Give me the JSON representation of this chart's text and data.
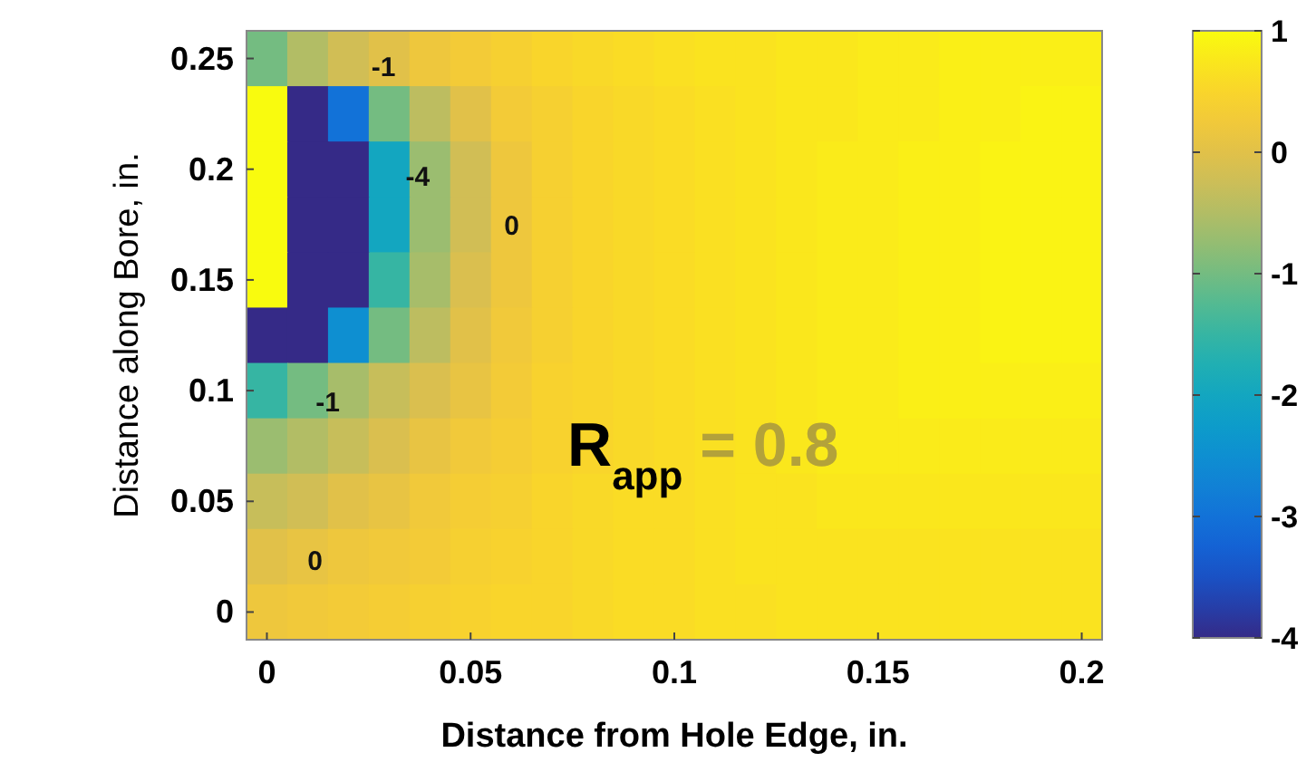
{
  "chart_data": {
    "type": "heatmap",
    "xlabel": "Distance from Hole Edge, in.",
    "ylabel": "Distance along Bore, in.",
    "categories": [
      "0",
      null,
      null,
      null,
      null,
      "0.05",
      null,
      null,
      null,
      null,
      "0.1",
      null,
      null,
      null,
      null,
      "0.15",
      null,
      null,
      null,
      null,
      "0.2"
    ],
    "y_categories": [
      "0.25",
      null,
      "0.2",
      null,
      "0.15",
      null,
      "0.1",
      null,
      "0.05",
      null,
      "0"
    ],
    "clim": [
      -4,
      1
    ],
    "cticks": [
      -4,
      -3,
      -2,
      -1,
      0,
      1
    ],
    "cells": [
      [
        -1,
        -0.5,
        -0.2,
        0,
        0.2,
        0.3,
        0.4,
        0.5,
        0.55,
        0.6,
        0.65,
        0.7,
        0.7,
        0.75,
        0.75,
        0.8,
        0.8,
        0.85,
        0.85,
        0.85,
        0.85
      ],
      [
        1,
        -4,
        -3,
        -1,
        -0.4,
        0,
        0.3,
        0.4,
        0.5,
        0.55,
        0.6,
        0.65,
        0.7,
        0.75,
        0.75,
        0.8,
        0.8,
        0.85,
        0.85,
        0.9,
        0.9
      ],
      [
        1,
        -4,
        -4,
        -2,
        -0.7,
        -0.2,
        0.2,
        0.4,
        0.5,
        0.55,
        0.6,
        0.65,
        0.7,
        0.75,
        0.8,
        0.8,
        0.85,
        0.85,
        0.9,
        0.9,
        0.9
      ],
      [
        1,
        -4,
        -4,
        -2,
        -0.7,
        -0.2,
        0.2,
        0.4,
        0.5,
        0.55,
        0.6,
        0.65,
        0.7,
        0.75,
        0.8,
        0.8,
        0.85,
        0.85,
        0.9,
        0.9,
        0.9
      ],
      [
        1,
        -4,
        -4,
        -1.5,
        -0.6,
        -0.1,
        0.2,
        0.4,
        0.5,
        0.55,
        0.6,
        0.65,
        0.7,
        0.75,
        0.8,
        0.8,
        0.85,
        0.85,
        0.9,
        0.9,
        0.9
      ],
      [
        -4,
        -4,
        -2.5,
        -1,
        -0.4,
        0,
        0.25,
        0.4,
        0.5,
        0.55,
        0.6,
        0.65,
        0.7,
        0.75,
        0.8,
        0.8,
        0.85,
        0.85,
        0.9,
        0.9,
        0.9
      ],
      [
        -1.5,
        -1,
        -0.6,
        -0.3,
        -0.1,
        0.1,
        0.3,
        0.45,
        0.5,
        0.55,
        0.6,
        0.65,
        0.7,
        0.75,
        0.8,
        0.8,
        0.85,
        0.85,
        0.85,
        0.85,
        0.85
      ],
      [
        -0.7,
        -0.5,
        -0.3,
        -0.1,
        0.1,
        0.25,
        0.35,
        0.45,
        0.5,
        0.55,
        0.6,
        0.65,
        0.7,
        0.75,
        0.8,
        0.8,
        0.8,
        0.8,
        0.8,
        0.8,
        0.8
      ],
      [
        -0.3,
        -0.2,
        0,
        0.1,
        0.25,
        0.35,
        0.4,
        0.5,
        0.55,
        0.6,
        0.6,
        0.65,
        0.7,
        0.7,
        0.75,
        0.75,
        0.75,
        0.75,
        0.75,
        0.75,
        0.75
      ],
      [
        0,
        0.1,
        0.2,
        0.25,
        0.3,
        0.4,
        0.45,
        0.5,
        0.55,
        0.6,
        0.6,
        0.65,
        0.7,
        0.7,
        0.7,
        0.7,
        0.7,
        0.7,
        0.7,
        0.7,
        0.7
      ],
      [
        0.2,
        0.25,
        0.3,
        0.35,
        0.4,
        0.45,
        0.5,
        0.5,
        0.55,
        0.6,
        0.6,
        0.65,
        0.65,
        0.7,
        0.7,
        0.7,
        0.7,
        0.7,
        0.7,
        0.7,
        0.7
      ]
    ],
    "annotations": [
      "R$_{app}$ = 0.8",
      "0",
      "0",
      "-1",
      "-1",
      "-4"
    ]
  }
}
